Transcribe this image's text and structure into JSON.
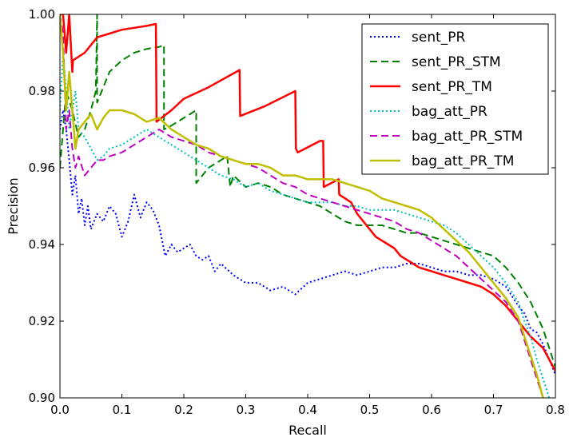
{
  "chart_data": {
    "type": "line",
    "title": "",
    "xlabel": "Recall",
    "ylabel": "Precision",
    "xlim": [
      0.0,
      0.8
    ],
    "ylim": [
      0.9,
      1.0
    ],
    "xticks": [
      "0.0",
      "0.1",
      "0.2",
      "0.3",
      "0.4",
      "0.5",
      "0.6",
      "0.7",
      "0.8"
    ],
    "yticks": [
      "0.90",
      "0.92",
      "0.94",
      "0.96",
      "0.98",
      "1.00"
    ],
    "grid": false,
    "legend_position": "top-right",
    "series": [
      {
        "name": "sent_PR",
        "color": "#0000ff",
        "style": "dotted",
        "x": [
          0.0,
          0.005,
          0.01,
          0.015,
          0.02,
          0.025,
          0.03,
          0.035,
          0.04,
          0.045,
          0.05,
          0.06,
          0.07,
          0.08,
          0.09,
          0.1,
          0.11,
          0.12,
          0.13,
          0.14,
          0.15,
          0.16,
          0.17,
          0.18,
          0.19,
          0.2,
          0.21,
          0.22,
          0.23,
          0.24,
          0.25,
          0.26,
          0.28,
          0.3,
          0.32,
          0.34,
          0.36,
          0.38,
          0.4,
          0.42,
          0.44,
          0.46,
          0.48,
          0.5,
          0.52,
          0.54,
          0.56,
          0.58,
          0.6,
          0.62,
          0.64,
          0.66,
          0.68,
          0.7,
          0.72,
          0.74,
          0.75,
          0.76,
          0.77,
          0.78,
          0.79,
          0.8
        ],
        "y": [
          0.97,
          0.975,
          0.97,
          0.962,
          0.953,
          0.958,
          0.948,
          0.952,
          0.945,
          0.95,
          0.944,
          0.948,
          0.946,
          0.95,
          0.948,
          0.942,
          0.946,
          0.953,
          0.947,
          0.951,
          0.949,
          0.945,
          0.937,
          0.94,
          0.938,
          0.939,
          0.94,
          0.937,
          0.936,
          0.937,
          0.933,
          0.935,
          0.932,
          0.93,
          0.93,
          0.928,
          0.929,
          0.927,
          0.93,
          0.931,
          0.932,
          0.933,
          0.932,
          0.933,
          0.934,
          0.934,
          0.935,
          0.935,
          0.934,
          0.933,
          0.933,
          0.932,
          0.932,
          0.931,
          0.929,
          0.924,
          0.922,
          0.918,
          0.917,
          0.914,
          0.91,
          0.906
        ]
      },
      {
        "name": "sent_PR_STM",
        "color": "#008000",
        "style": "dashed",
        "x": [
          0.0,
          0.01,
          0.02,
          0.03,
          0.04,
          0.05,
          0.058,
          0.06,
          0.06,
          0.08,
          0.1,
          0.12,
          0.14,
          0.16,
          0.168,
          0.168,
          0.18,
          0.2,
          0.22,
          0.22,
          0.24,
          0.26,
          0.27,
          0.275,
          0.28,
          0.3,
          0.32,
          0.34,
          0.36,
          0.38,
          0.4,
          0.42,
          0.44,
          0.46,
          0.48,
          0.5,
          0.52,
          0.54,
          0.56,
          0.58,
          0.6,
          0.62,
          0.64,
          0.66,
          0.68,
          0.7,
          0.72,
          0.74,
          0.76,
          0.78,
          0.8
        ],
        "y": [
          0.96,
          0.98,
          0.975,
          0.968,
          0.97,
          0.975,
          0.98,
          1.0,
          0.977,
          0.985,
          0.988,
          0.99,
          0.991,
          0.9915,
          0.992,
          0.97,
          0.971,
          0.973,
          0.975,
          0.956,
          0.96,
          0.962,
          0.963,
          0.955,
          0.958,
          0.955,
          0.956,
          0.955,
          0.953,
          0.952,
          0.951,
          0.95,
          0.948,
          0.946,
          0.945,
          0.945,
          0.945,
          0.944,
          0.943,
          0.943,
          0.942,
          0.941,
          0.94,
          0.939,
          0.938,
          0.937,
          0.934,
          0.93,
          0.925,
          0.918,
          0.908
        ]
      },
      {
        "name": "sent_PR_TM",
        "color": "#ff0000",
        "style": "solid",
        "x": [
          0.0,
          0.005,
          0.01,
          0.015,
          0.02,
          0.021,
          0.04,
          0.06,
          0.08,
          0.1,
          0.12,
          0.14,
          0.155,
          0.156,
          0.18,
          0.2,
          0.24,
          0.29,
          0.291,
          0.33,
          0.38,
          0.381,
          0.384,
          0.42,
          0.425,
          0.426,
          0.45,
          0.451,
          0.47,
          0.48,
          0.49,
          0.5,
          0.51,
          0.52,
          0.53,
          0.54,
          0.55,
          0.56,
          0.57,
          0.58,
          0.6,
          0.62,
          0.64,
          0.66,
          0.68,
          0.7,
          0.72,
          0.74,
          0.76,
          0.78,
          0.8
        ],
        "y": [
          1.0,
          1.0,
          0.99,
          1.0,
          0.985,
          0.988,
          0.99,
          0.994,
          0.995,
          0.996,
          0.9965,
          0.997,
          0.9975,
          0.972,
          0.975,
          0.978,
          0.981,
          0.9855,
          0.9735,
          0.976,
          0.98,
          0.965,
          0.964,
          0.967,
          0.967,
          0.955,
          0.957,
          0.953,
          0.951,
          0.948,
          0.946,
          0.944,
          0.942,
          0.941,
          0.94,
          0.939,
          0.937,
          0.936,
          0.935,
          0.934,
          0.933,
          0.932,
          0.931,
          0.93,
          0.929,
          0.927,
          0.924,
          0.92,
          0.916,
          0.913,
          0.907
        ]
      },
      {
        "name": "bag_att_PR",
        "color": "#00bfbf",
        "style": "dotted",
        "x": [
          0.0,
          0.005,
          0.01,
          0.015,
          0.02,
          0.025,
          0.03,
          0.04,
          0.05,
          0.06,
          0.07,
          0.08,
          0.1,
          0.12,
          0.14,
          0.16,
          0.18,
          0.2,
          0.22,
          0.24,
          0.26,
          0.28,
          0.3,
          0.32,
          0.34,
          0.36,
          0.38,
          0.4,
          0.42,
          0.44,
          0.46,
          0.48,
          0.5,
          0.52,
          0.54,
          0.56,
          0.58,
          0.6,
          0.62,
          0.64,
          0.66,
          0.68,
          0.7,
          0.72,
          0.74,
          0.75,
          0.76,
          0.77,
          0.78,
          0.79,
          0.8
        ],
        "y": [
          0.975,
          0.99,
          0.98,
          0.97,
          0.975,
          0.98,
          0.97,
          0.968,
          0.965,
          0.962,
          0.963,
          0.965,
          0.966,
          0.968,
          0.97,
          0.968,
          0.966,
          0.964,
          0.962,
          0.96,
          0.958,
          0.957,
          0.955,
          0.956,
          0.954,
          0.953,
          0.952,
          0.951,
          0.951,
          0.951,
          0.95,
          0.95,
          0.949,
          0.949,
          0.949,
          0.948,
          0.947,
          0.946,
          0.945,
          0.943,
          0.94,
          0.937,
          0.934,
          0.93,
          0.925,
          0.92,
          0.916,
          0.91,
          0.905,
          0.9,
          0.89
        ]
      },
      {
        "name": "bag_att_PR_STM",
        "color": "#bf00bf",
        "style": "dashed",
        "x": [
          0.0,
          0.005,
          0.01,
          0.015,
          0.02,
          0.025,
          0.03,
          0.04,
          0.05,
          0.06,
          0.07,
          0.08,
          0.1,
          0.12,
          0.14,
          0.16,
          0.18,
          0.2,
          0.22,
          0.24,
          0.26,
          0.28,
          0.3,
          0.32,
          0.34,
          0.36,
          0.38,
          0.4,
          0.42,
          0.44,
          0.46,
          0.48,
          0.5,
          0.52,
          0.54,
          0.56,
          0.58,
          0.6,
          0.62,
          0.64,
          0.66,
          0.68,
          0.7,
          0.72,
          0.74,
          0.75,
          0.76,
          0.77,
          0.78,
          0.79
        ],
        "y": [
          1.0,
          0.995,
          0.97,
          0.975,
          0.965,
          0.96,
          0.963,
          0.958,
          0.96,
          0.962,
          0.962,
          0.963,
          0.964,
          0.966,
          0.968,
          0.97,
          0.968,
          0.967,
          0.966,
          0.964,
          0.963,
          0.962,
          0.961,
          0.96,
          0.958,
          0.956,
          0.955,
          0.953,
          0.952,
          0.951,
          0.95,
          0.949,
          0.948,
          0.947,
          0.946,
          0.944,
          0.943,
          0.941,
          0.939,
          0.937,
          0.934,
          0.931,
          0.928,
          0.925,
          0.92,
          0.915,
          0.91,
          0.905,
          0.9,
          0.89
        ]
      },
      {
        "name": "bag_att_PR_TM",
        "color": "#bfbf00",
        "style": "solid",
        "x": [
          0.0,
          0.005,
          0.01,
          0.015,
          0.02,
          0.025,
          0.03,
          0.04,
          0.05,
          0.06,
          0.07,
          0.08,
          0.1,
          0.12,
          0.14,
          0.16,
          0.18,
          0.2,
          0.22,
          0.24,
          0.26,
          0.28,
          0.3,
          0.32,
          0.34,
          0.36,
          0.38,
          0.4,
          0.42,
          0.44,
          0.46,
          0.48,
          0.5,
          0.52,
          0.54,
          0.56,
          0.58,
          0.6,
          0.62,
          0.64,
          0.66,
          0.68,
          0.7,
          0.72,
          0.74,
          0.75,
          0.76,
          0.77,
          0.78,
          0.79
        ],
        "y": [
          1.0,
          0.99,
          0.975,
          0.985,
          0.975,
          0.965,
          0.97,
          0.972,
          0.974,
          0.97,
          0.973,
          0.975,
          0.975,
          0.974,
          0.972,
          0.973,
          0.97,
          0.968,
          0.966,
          0.965,
          0.963,
          0.962,
          0.961,
          0.961,
          0.96,
          0.958,
          0.958,
          0.957,
          0.957,
          0.957,
          0.956,
          0.955,
          0.954,
          0.952,
          0.951,
          0.95,
          0.949,
          0.947,
          0.944,
          0.941,
          0.938,
          0.934,
          0.93,
          0.926,
          0.921,
          0.916,
          0.911,
          0.906,
          0.9,
          0.895
        ]
      }
    ]
  }
}
